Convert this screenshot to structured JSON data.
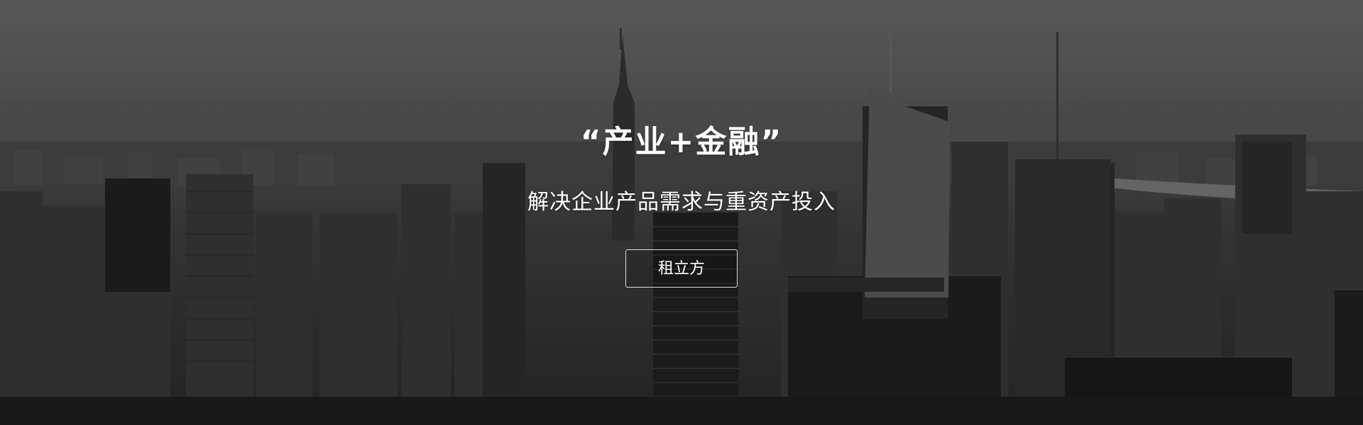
{
  "hero": {
    "title": "“产业+金融”",
    "subtitle": "解决企业产品需求与重资产投入",
    "cta_label": "租立方"
  },
  "colors": {
    "text": "#ffffff",
    "button_border": "#ffffff",
    "background_tone": "#3f3f3f"
  }
}
